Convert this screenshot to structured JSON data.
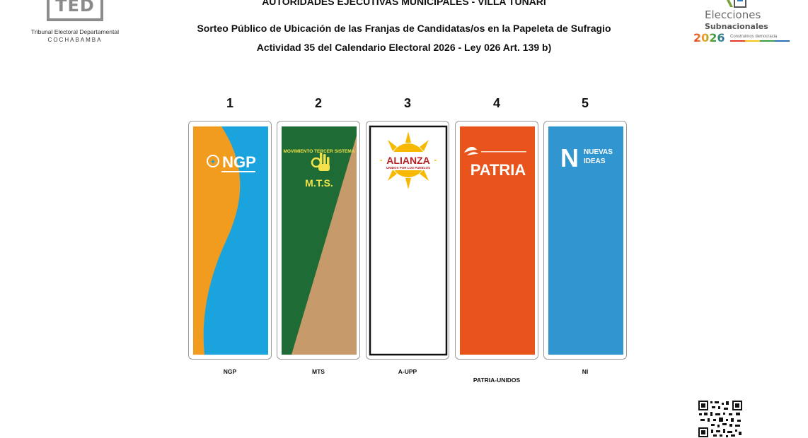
{
  "header": {
    "line1": "AUTORIDADES EJECUTIVAS MUNICIPALES - VILLA TUNARI",
    "line2": "Sorteo Público de Ubicación de las Franjas de Candidatas/os en la Papeleta de Sufragio",
    "line3": "Actividad 35 del Calendario Electoral 2026 - Ley 026 Art. 139 b)"
  },
  "ted_logo": {
    "acronym": "TED",
    "name": "Tribunal Electoral Departamental",
    "department": "COCHABAMBA"
  },
  "elections_logo": {
    "word1": "Elecciones",
    "word2": "Subnacionales",
    "year": "2026",
    "tagline": "Construimos democracia"
  },
  "ballots": [
    {
      "number": "1",
      "label": "NGP",
      "logo_text": "NGP",
      "colors": {
        "primary": "#f29c1f",
        "secondary": "#1aa3dd"
      }
    },
    {
      "number": "2",
      "label": "MTS",
      "logo_text": "M.T.S.",
      "logo_arc": "MOVIMIENTO TERCER SISTEMA",
      "colors": {
        "primary": "#1e6b35",
        "secondary": "#c69a6a"
      }
    },
    {
      "number": "3",
      "label": "A-UPP",
      "logo_text": "ALIANZA",
      "logo_sub": "UNIDOS POR LOS PUEBLOS",
      "colors": {
        "primary": "#ffffff",
        "text": "#b52325",
        "sun": "#f7b800"
      }
    },
    {
      "number": "4",
      "label": "PATRIA-UNIDOS",
      "logo_text": "PATRIA",
      "colors": {
        "primary": "#e8541c"
      }
    },
    {
      "number": "5",
      "label": "NI",
      "logo_text1": "NUEVAS",
      "logo_text2": "IDEAS",
      "logo_mark": "N",
      "colors": {
        "primary": "#3196d0"
      }
    }
  ]
}
